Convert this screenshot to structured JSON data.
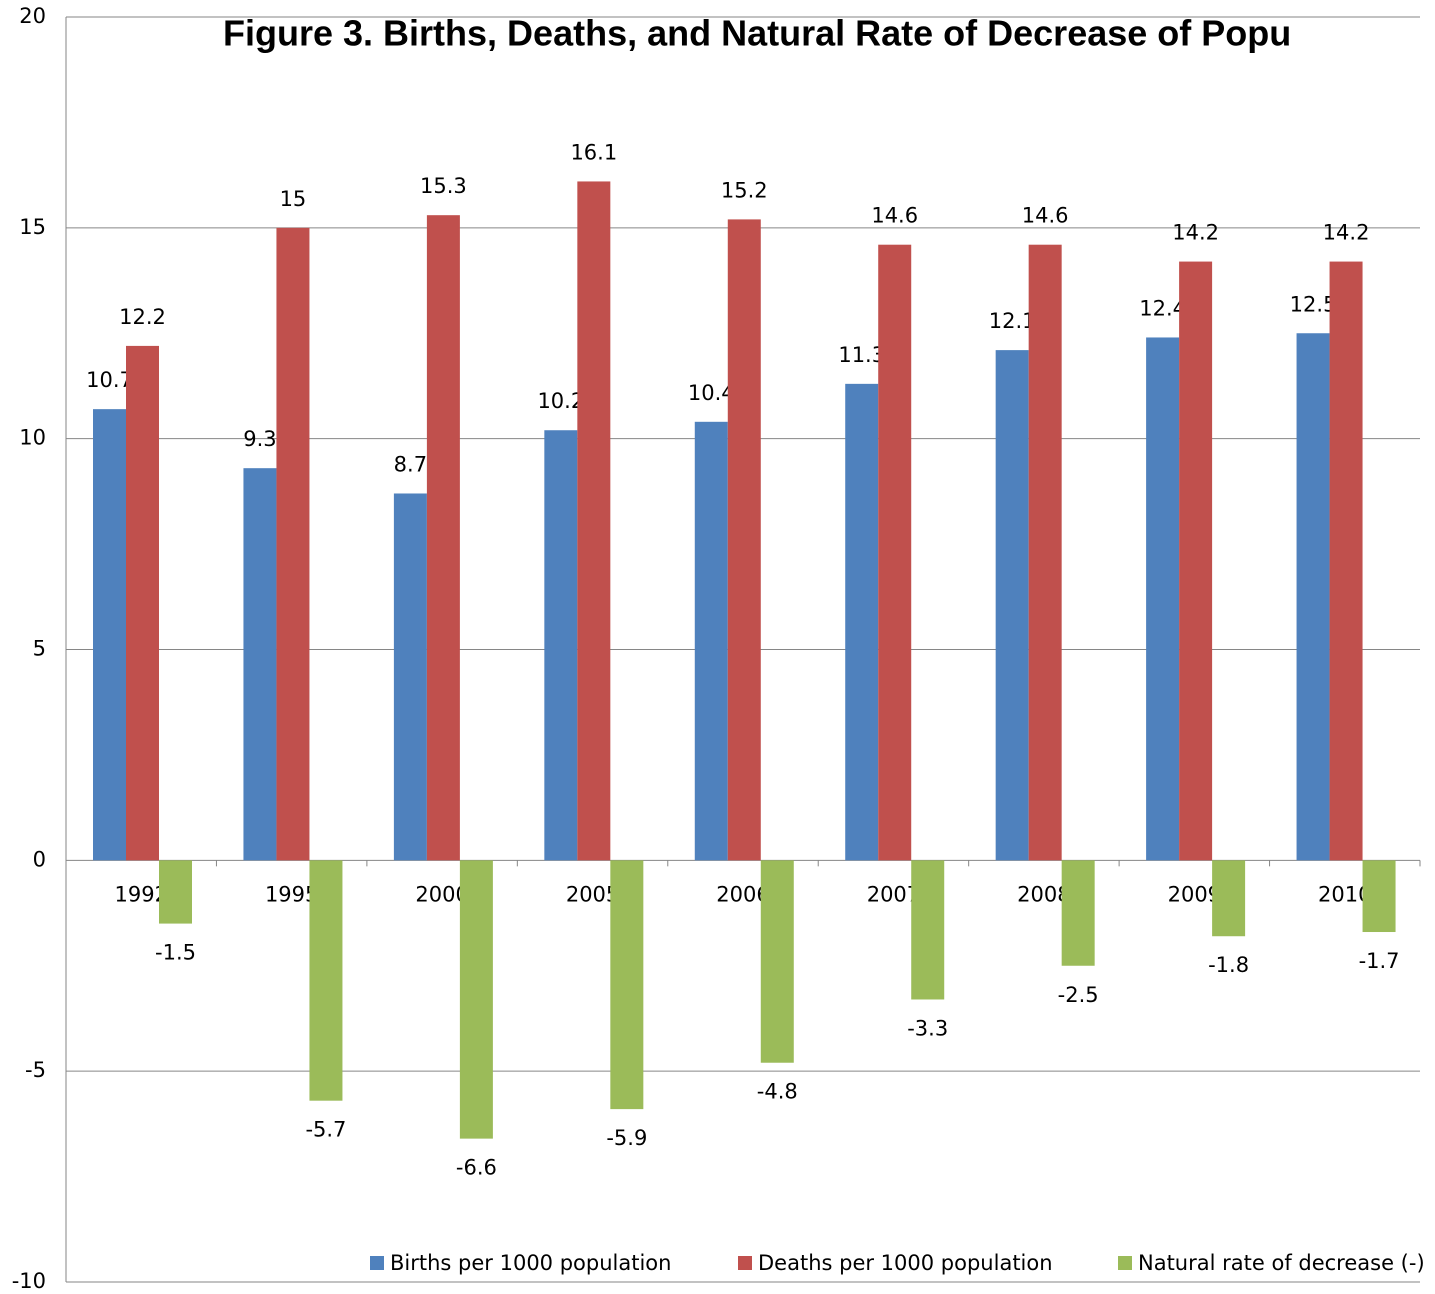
{
  "chart_data": {
    "type": "bar",
    "title": "Figure 3. Births, Deaths, and Natural Rate of Decrease of Popu",
    "categories": [
      "1992",
      "1995",
      "2000",
      "2005",
      "2006",
      "2007",
      "2008",
      "2009",
      "2010"
    ],
    "series": [
      {
        "name": "Births per 1000 population",
        "color": "#4f81bd",
        "values": [
          10.7,
          9.3,
          8.7,
          10.2,
          10.4,
          11.3,
          12.1,
          12.4,
          12.5
        ]
      },
      {
        "name": "Deaths per 1000 population",
        "color": "#c0504d",
        "values": [
          12.2,
          15,
          15.3,
          16.1,
          15.2,
          14.6,
          14.6,
          14.2,
          14.2
        ]
      },
      {
        "name": "Natural rate of decrease (-)",
        "color": "#9bbb59",
        "values": [
          -1.5,
          -5.7,
          -6.6,
          -5.9,
          -4.8,
          -3.3,
          -2.5,
          -1.8,
          -1.7
        ]
      }
    ],
    "ylim": [
      -10,
      20
    ],
    "yticks": [
      -10,
      -5,
      0,
      5,
      10,
      15,
      20
    ],
    "grid": true
  }
}
